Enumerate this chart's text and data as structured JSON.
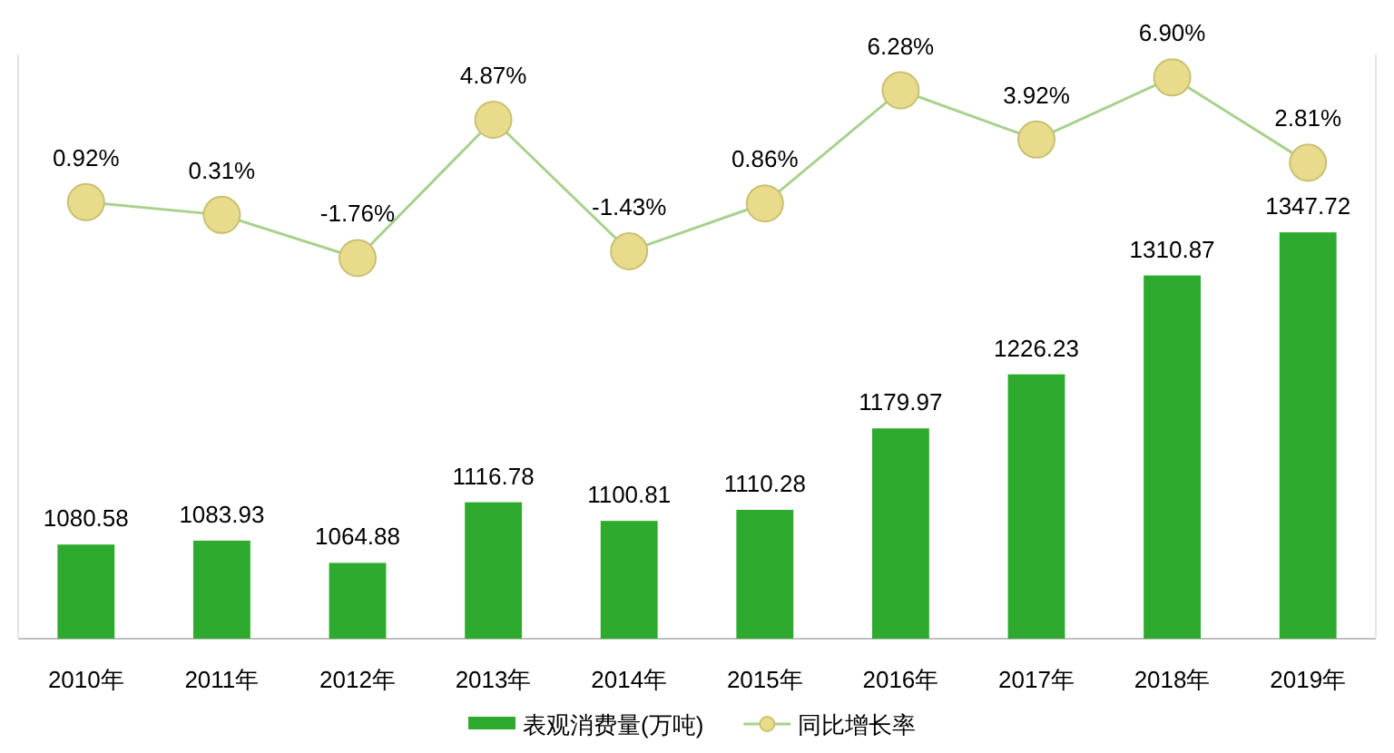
{
  "chart_data": {
    "type": "bar",
    "categories": [
      "2010年",
      "2011年",
      "2012年",
      "2013年",
      "2014年",
      "2015年",
      "2016年",
      "2017年",
      "2018年",
      "2019年"
    ],
    "series": [
      {
        "name": "表观消费量(万吨)",
        "color": "#2eaa2e",
        "values": [
          1080.58,
          1083.93,
          1064.88,
          1116.78,
          1100.81,
          1110.28,
          1179.97,
          1226.23,
          1310.87,
          1347.72
        ],
        "value_labels": [
          "1080.58",
          "1083.93",
          "1064.88",
          "1116.78",
          "1100.81",
          "1110.28",
          "1179.97",
          "1226.23",
          "1310.87",
          "1347.72"
        ]
      },
      {
        "name": "同比增长率",
        "type": "line",
        "axis": "y2",
        "color": "#a9d18e",
        "marker": "circle",
        "values": [
          0.92,
          0.31,
          -1.76,
          4.87,
          -1.43,
          0.86,
          6.28,
          3.92,
          6.9,
          2.81
        ],
        "value_labels": [
          "0.92%",
          "0.31%",
          "-1.76%",
          "4.87%",
          "-1.43%",
          "0.86%",
          "6.28%",
          "3.92%",
          "6.90%",
          "2.81%"
        ]
      }
    ],
    "ylim": [
      1000,
      1500
    ],
    "y2lim": [
      -20,
      8
    ],
    "tick_labels": "x",
    "legend": "bottom",
    "grid": false,
    "line_style": "solid"
  }
}
